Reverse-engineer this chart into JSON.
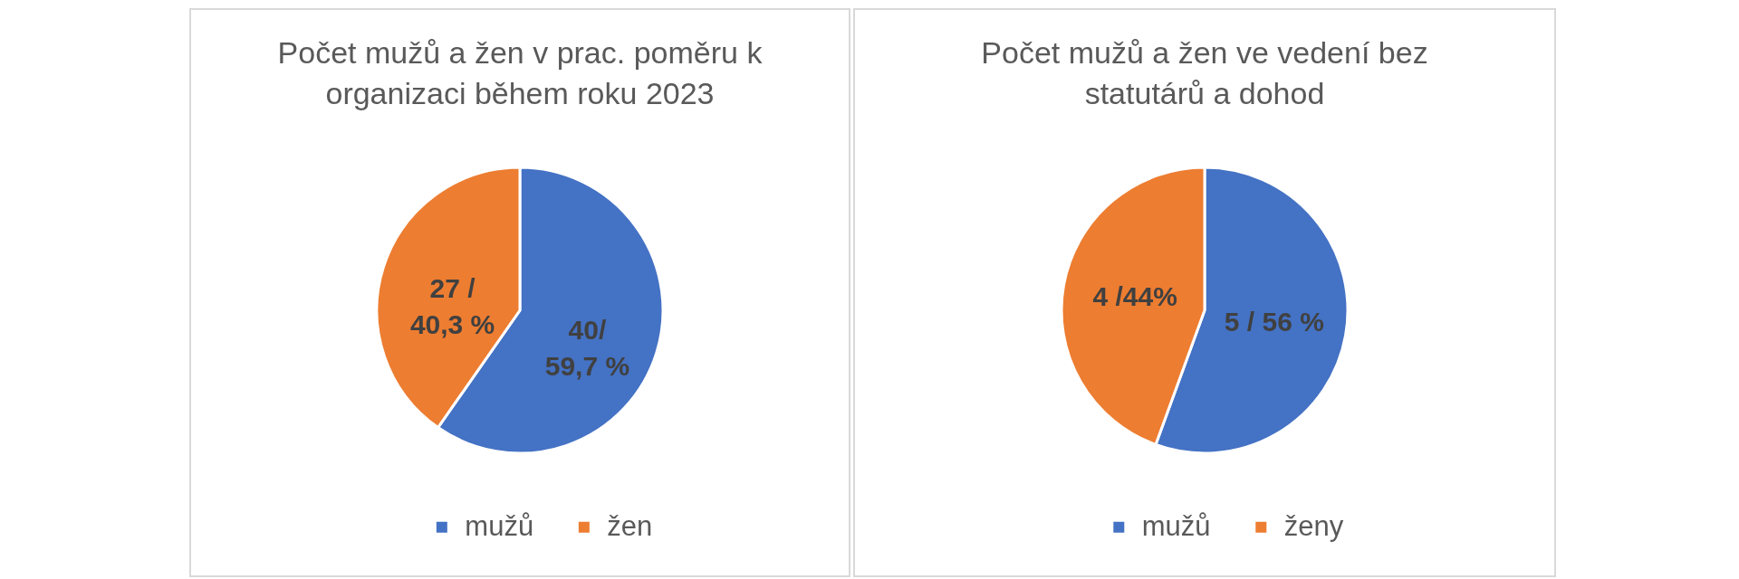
{
  "chart_data": [
    {
      "type": "pie",
      "title": "Počet mužů a žen v prac. poměru k organizaci během roku 2023",
      "categories": [
        "mužů",
        "žen"
      ],
      "values": [
        40,
        27
      ],
      "colors": [
        "#4472c4",
        "#ed7d31"
      ],
      "value_labels": [
        "40/\n59,7 %",
        "27 /\n40,3 %"
      ],
      "legend": "bottom"
    },
    {
      "type": "pie",
      "title": "Počet mužů a žen ve vedení bez statutárů a dohod",
      "categories": [
        "mužů",
        "ženy"
      ],
      "values": [
        5,
        4
      ],
      "colors": [
        "#4472c4",
        "#ed7d31"
      ],
      "value_labels": [
        "5 / 56 %",
        "4 /44%"
      ],
      "legend": "bottom"
    }
  ]
}
